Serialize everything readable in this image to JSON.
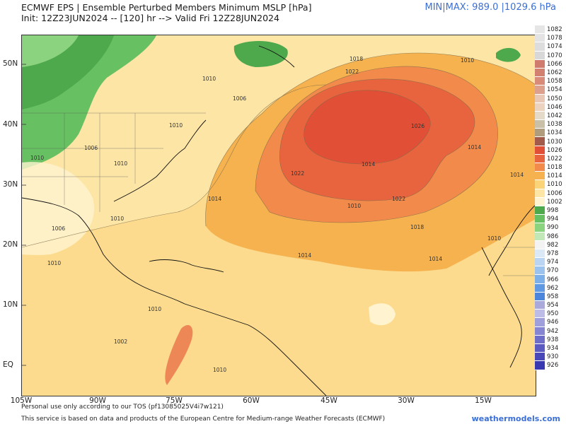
{
  "header": {
    "title": "ECMWF EPS | Ensemble Perturbed Members Minimum MSLP [hPa]",
    "init_line": "Init: 12Z23JUN2024 -- [120] hr --> Valid Fri 12Z28JUN2024",
    "minmax": "MIN|MAX: 989.0 |1029.6 hPa"
  },
  "axes": {
    "lat_labels": [
      "50N",
      "40N",
      "30N",
      "20N",
      "10N",
      "EQ"
    ],
    "lon_labels": [
      "105W",
      "90W",
      "75W",
      "60W",
      "45W",
      "30W",
      "15W"
    ]
  },
  "contour_labels": [
    "1014",
    "1018",
    "1022",
    "1026",
    "1014",
    "1010",
    "1022",
    "1022",
    "1018",
    "1014",
    "1014",
    "1014",
    "1010",
    "1010",
    "1006",
    "1010",
    "1006",
    "1010",
    "1010",
    "1010",
    "1002",
    "1010",
    "1010",
    "1006",
    "1010",
    "1014",
    "1010"
  ],
  "colorbar": {
    "levels": [
      "1082",
      "1078",
      "1074",
      "1070",
      "1066",
      "1062",
      "1058",
      "1054",
      "1050",
      "1046",
      "1042",
      "1038",
      "1034",
      "1030",
      "1026",
      "1022",
      "1018",
      "1014",
      "1010",
      "1006",
      "1002",
      "998",
      "994",
      "990",
      "986",
      "982",
      "978",
      "974",
      "970",
      "966",
      "962",
      "958",
      "954",
      "950",
      "946",
      "942",
      "938",
      "934",
      "930",
      "926"
    ],
    "colors": [
      "#e6e6e6",
      "#e3e3e3",
      "#dddddd",
      "#d8d8d8",
      "#cf7c6e",
      "#d2806f",
      "#d98b7a",
      "#dca08d",
      "#e8c7b4",
      "#ebd3bf",
      "#e5d9c8",
      "#c9c0a7",
      "#b09d7e",
      "#a25a4a",
      "#e04f36",
      "#e8643e",
      "#f18a4b",
      "#f6b24f",
      "#fbd47a",
      "#fde5a6",
      "#fff4cf",
      "#4ea84c",
      "#67c163",
      "#8bd37f",
      "#c2e8b7",
      "#f3f3f3",
      "#dbe8f6",
      "#b9d5f2",
      "#9cc3ee",
      "#7dafe9",
      "#5f98e3",
      "#4b85dc",
      "#a9a9dc",
      "#bcbce6",
      "#9f9fdc",
      "#8585d2",
      "#6e6ec9",
      "#5a5ac0",
      "#4848b8",
      "#3838b0"
    ]
  },
  "footer": {
    "tos": "Personal use only according to our TOS (pf13085025V4i7w121)",
    "source": "This service is based on data and products of the European Centre for Medium-range Weather Forecasts (ECMWF)",
    "brand": "weathermodels.com"
  }
}
